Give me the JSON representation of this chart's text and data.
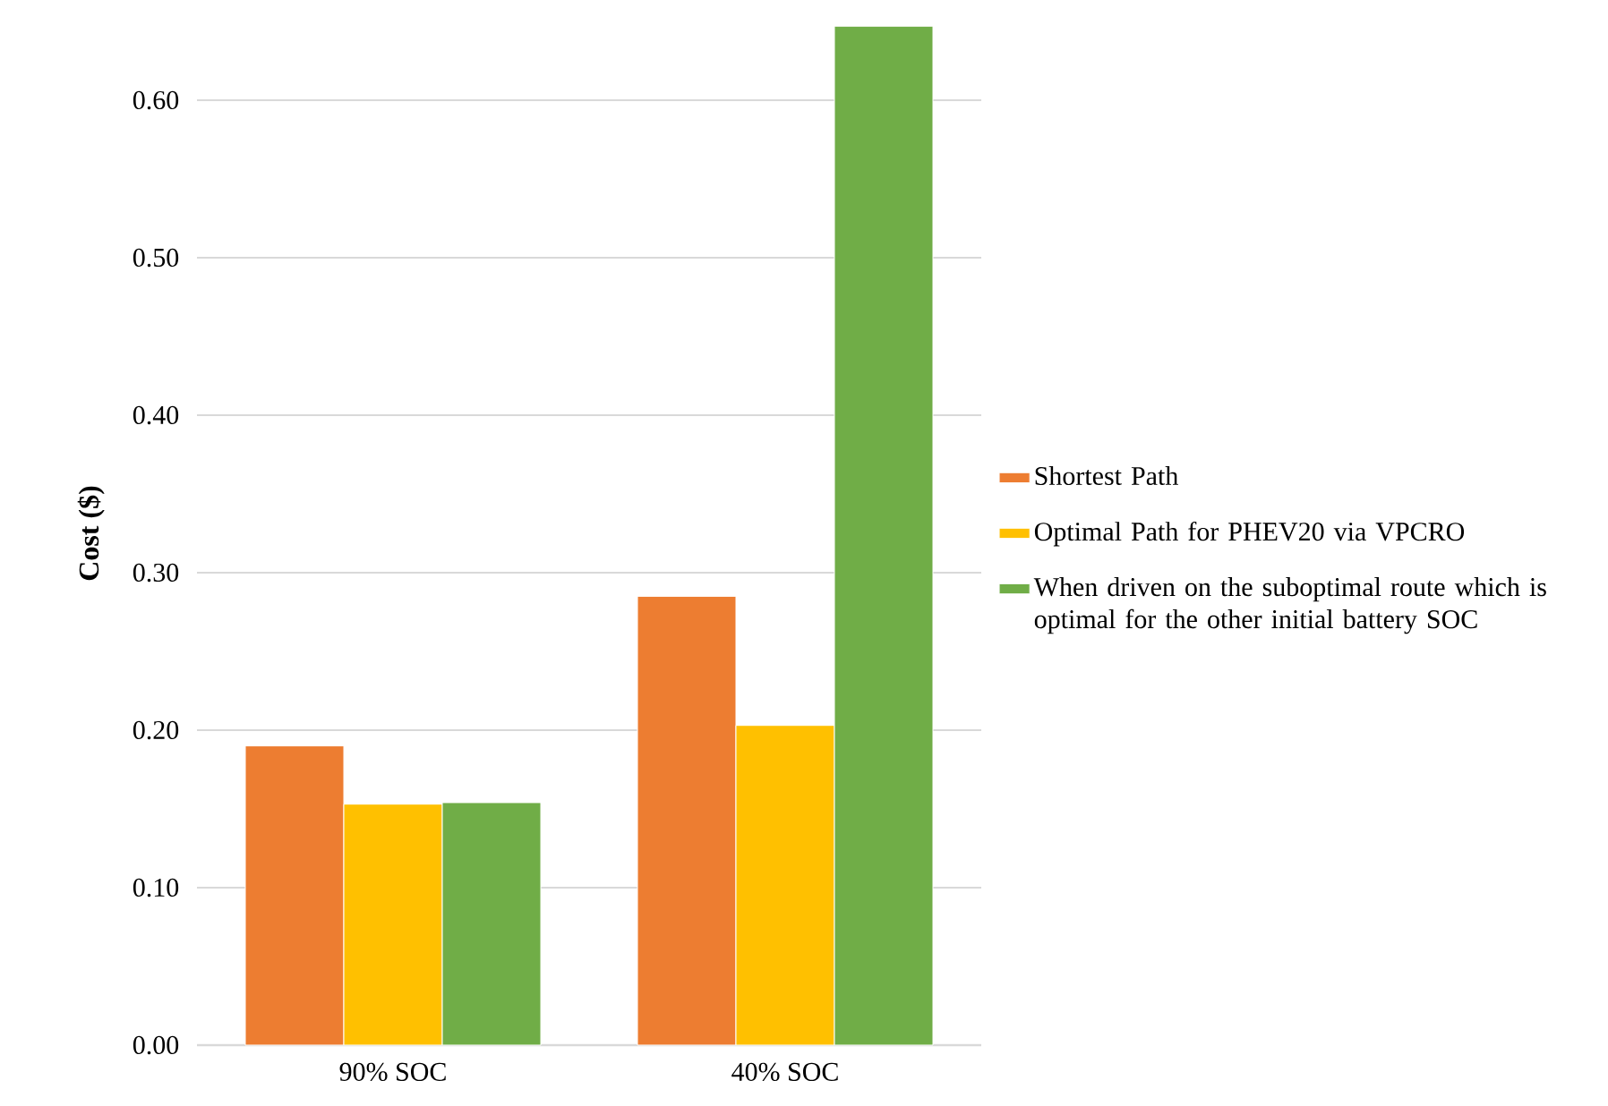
{
  "chart_data": {
    "type": "bar",
    "ylabel": "Cost ($)",
    "categories": [
      "90% SOC",
      "40% SOC"
    ],
    "series": [
      {
        "name": "Shortest Path",
        "color": "#ed7d31",
        "values": [
          0.19,
          0.285
        ]
      },
      {
        "name": "Optimal Path for PHEV20 via VPCRO",
        "color": "#ffc000",
        "values": [
          0.153,
          0.203
        ]
      },
      {
        "name": "When driven on the suboptimal route which is optimal for the other initial battery SOC",
        "color": "#70ad47",
        "values": [
          0.154,
          0.647
        ]
      }
    ],
    "ylim": [
      0,
      0.65
    ],
    "yticks": [
      {
        "value": 0,
        "label": "0.00"
      },
      {
        "value": 0.1,
        "label": "0.10"
      },
      {
        "value": 0.2,
        "label": "0.20"
      },
      {
        "value": 0.3,
        "label": "0.30"
      },
      {
        "value": 0.4,
        "label": "0.40"
      },
      {
        "value": 0.5,
        "label": "0.50"
      },
      {
        "value": 0.6,
        "label": "0.60"
      }
    ],
    "grid": "y",
    "legend": "right"
  }
}
